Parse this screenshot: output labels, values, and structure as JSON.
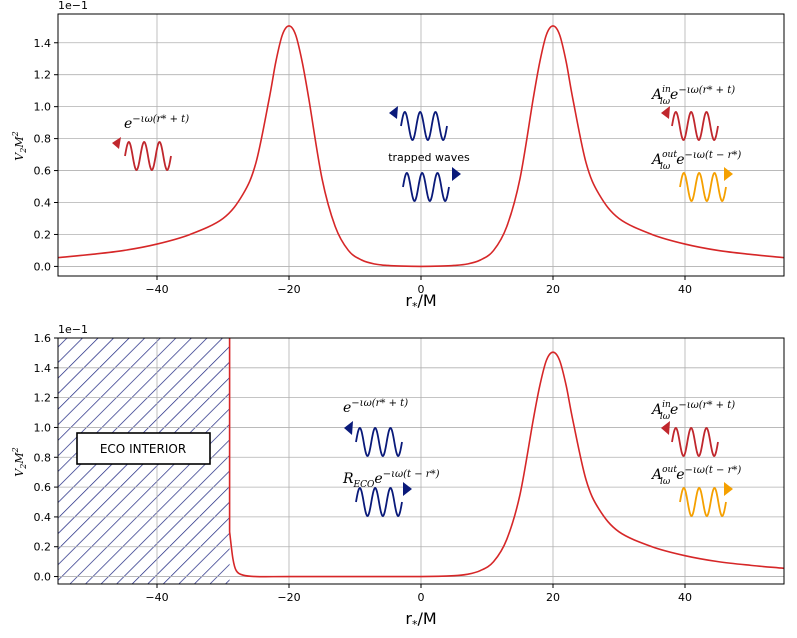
{
  "colors": {
    "potential": "#d62728",
    "outgoing_red": "#c0272d",
    "trapped_blue": "#0a1a7a",
    "reflected_orange": "#f5a000",
    "grid": "#b0b0b0",
    "hatch": "#1a237e"
  },
  "chart_data": [
    {
      "type": "line",
      "title": "",
      "xlabel": "r_*/M",
      "ylabel": "V_2 M^2",
      "offset_label": "1e−1",
      "xlim": [
        -55,
        55
      ],
      "ylim": [
        -0.06,
        1.58
      ],
      "xticks": [
        -40,
        -20,
        0,
        20,
        40
      ],
      "xtick_labels": [
        "−40",
        "−20",
        "0",
        "20",
        "40"
      ],
      "yticks": [
        0.0,
        0.2,
        0.4,
        0.6,
        0.8,
        1.0,
        1.2,
        1.4
      ],
      "ytick_labels": [
        "0.0",
        "0.2",
        "0.4",
        "0.6",
        "0.8",
        "1.0",
        "1.2",
        "1.4"
      ],
      "grid": true,
      "series": [
        {
          "name": "potential",
          "x": [
            -55,
            -50,
            -45,
            -40,
            -35,
            -30,
            -27,
            -25,
            -23,
            -22,
            -21,
            -20,
            -19,
            -18,
            -17,
            -15,
            -13,
            -11,
            -9,
            -7,
            -5,
            -3,
            0,
            3,
            5,
            7,
            9,
            11,
            13,
            15,
            17,
            18,
            19,
            20,
            21,
            22,
            23,
            25,
            27,
            30,
            35,
            40,
            45,
            50,
            55
          ],
          "y": [
            0.055,
            0.075,
            0.1,
            0.14,
            0.2,
            0.3,
            0.45,
            0.65,
            1.05,
            1.28,
            1.45,
            1.505,
            1.45,
            1.28,
            1.05,
            0.55,
            0.25,
            0.1,
            0.04,
            0.015,
            0.006,
            0.002,
            0.0,
            0.002,
            0.006,
            0.015,
            0.04,
            0.1,
            0.25,
            0.55,
            1.05,
            1.28,
            1.45,
            1.505,
            1.45,
            1.28,
            1.05,
            0.65,
            0.45,
            0.3,
            0.2,
            0.14,
            0.1,
            0.075,
            0.055
          ]
        }
      ],
      "annotations": {
        "left_wave": {
          "base": "e",
          "exp": "−ιω(r* + t)"
        },
        "trapped_text": "trapped waves",
        "right_in": {
          "base": "A",
          "sup": "in",
          "sub": "lω",
          "exp": "−ιω(r* + t)"
        },
        "right_out": {
          "base": "A",
          "sup": "out",
          "sub": "lω",
          "exp": "−ιω(t − r*)"
        }
      }
    },
    {
      "type": "line",
      "title": "",
      "xlabel": "r_*/M",
      "ylabel": "V_2 M^2",
      "offset_label": "1e−1",
      "xlim": [
        -55,
        55
      ],
      "ylim": [
        -0.05,
        1.6
      ],
      "xticks": [
        -40,
        -20,
        0,
        20,
        40
      ],
      "xtick_labels": [
        "−40",
        "−20",
        "0",
        "20",
        "40"
      ],
      "yticks": [
        0.0,
        0.2,
        0.4,
        0.6,
        0.8,
        1.0,
        1.2,
        1.4,
        1.6
      ],
      "ytick_labels": [
        "0.0",
        "0.2",
        "0.4",
        "0.6",
        "0.8",
        "1.0",
        "1.2",
        "1.4",
        "1.6"
      ],
      "grid": true,
      "hatched_region": {
        "x": [
          -55,
          -29
        ],
        "label": "ECO INTERIOR"
      },
      "series": [
        {
          "name": "potential",
          "x": [
            -29,
            -29,
            -28.5,
            -28,
            -27,
            -25,
            -20,
            -10,
            0,
            5,
            7,
            9,
            11,
            13,
            15,
            17,
            18,
            19,
            20,
            21,
            22,
            23,
            25,
            27,
            30,
            35,
            40,
            45,
            50,
            55
          ],
          "y": [
            1.6,
            0.3,
            0.12,
            0.04,
            0.01,
            0.0,
            0.0,
            0.0,
            0.0,
            0.006,
            0.015,
            0.04,
            0.1,
            0.25,
            0.55,
            1.05,
            1.28,
            1.45,
            1.505,
            1.45,
            1.28,
            1.05,
            0.65,
            0.45,
            0.3,
            0.2,
            0.14,
            0.1,
            0.075,
            0.055
          ]
        }
      ],
      "annotations": {
        "mid_in": {
          "base": "e",
          "exp": "−ιω(r* + t)"
        },
        "mid_out": {
          "base": "R",
          "sub": "ECO",
          "exp": "−ιω(t − r*)",
          "tail": "e"
        },
        "right_in": {
          "base": "A",
          "sup": "in",
          "sub": "lω",
          "exp": "−ιω(r* + t)"
        },
        "right_out": {
          "base": "A",
          "sup": "out",
          "sub": "lω",
          "exp": "−ιω(t − r*)"
        }
      }
    }
  ]
}
